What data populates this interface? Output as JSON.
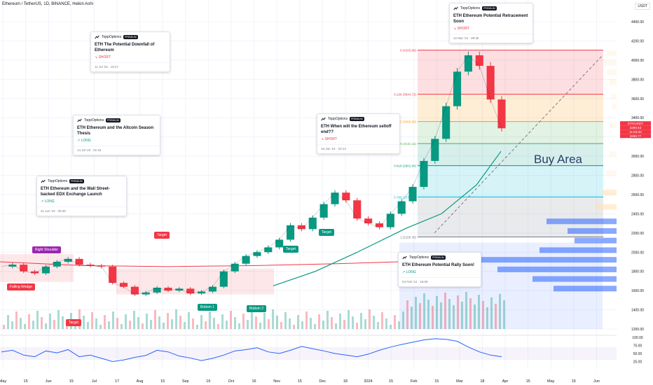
{
  "header": {
    "symbol_title": "Ethereum / TetherUS, 1D, BINANCE, Heikin Ashi",
    "currency": "USDT"
  },
  "price_axis": {
    "labels": [
      "4400.00",
      "4200.00",
      "4000.00",
      "3800.00",
      "3600.00",
      "3400.00",
      "3200.00",
      "3000.00",
      "2800.00",
      "2600.00",
      "2400.00",
      "2200.00",
      "2000.00",
      "1800.00",
      "1600.00",
      "1400.00",
      "1200.00"
    ],
    "badges": [
      {
        "text": "ETHUSDT",
        "color": "#f23645"
      },
      {
        "text": "3290.54",
        "color": "#f23645"
      },
      {
        "text": "11:53:32",
        "color": "#f23645"
      },
      {
        "text": "3290.77",
        "color": "#f23645"
      }
    ]
  },
  "rsi_axis": {
    "labels": [
      "100.00",
      "75.00",
      "50.00",
      "25.00"
    ]
  },
  "time_axis": {
    "labels": [
      "May",
      "15",
      "Jun",
      "15",
      "Jul",
      "17",
      "Aug",
      "15",
      "Sep",
      "16",
      "Oct",
      "16",
      "Nov",
      "15",
      "Dec",
      "18",
      "2024",
      "15",
      "Feb",
      "15",
      "Mar",
      "18",
      "Apr",
      "15",
      "May",
      "15",
      "Jun"
    ]
  },
  "fib_levels": [
    {
      "label": "0 (4103.86)",
      "color": "#f23645"
    },
    {
      "label": "0.236 (3644.72)",
      "color": "#f23645"
    },
    {
      "label": "0.382 (3360.68)",
      "color": "#ff9800"
    },
    {
      "label": "0.5 (3131.11)",
      "color": "#4caf50"
    },
    {
      "label": "0.618 (2901.54)",
      "color": "#089981"
    },
    {
      "label": "0.786 (2574.70)",
      "color": "#00bcd4"
    },
    {
      "label": "1 (2158.35)",
      "color": "#787b86"
    }
  ],
  "annotations": {
    "buy_area": "Buy Area",
    "tags": [
      {
        "text": "Right Shoulder",
        "color": "#9c27b0"
      },
      {
        "text": "Falling Wedge",
        "color": "#f23645"
      },
      {
        "text": "Target",
        "color": "#f23645"
      },
      {
        "text": "Target",
        "color": "#f23645"
      },
      {
        "text": "Bottom 1",
        "color": "#089981"
      },
      {
        "text": "Bottom 2",
        "color": "#089981"
      },
      {
        "text": "Target",
        "color": "#089981"
      },
      {
        "text": "Target",
        "color": "#089981"
      }
    ]
  },
  "ideas": [
    {
      "brand": "ToppOptions",
      "badge": "PREMIUM",
      "title": "ETH The Potential Downfall of Ethereum",
      "direction": "SHORT",
      "date": "11 Jul '23 · 19:27"
    },
    {
      "brand": "ToppOptions",
      "badge": "PREMIUM",
      "title": "ETH Ethereum and the Altcoin Season Thesis",
      "direction": "LONG",
      "date": "14 Jul '23 · 01:15"
    },
    {
      "brand": "ToppOptions",
      "badge": "PREMIUM",
      "title": "ETH Ethereum and the Wall Street-backed EDX Exchange Launch",
      "direction": "LONG",
      "date": "21 Jun '23 · 09:30"
    },
    {
      "brand": "ToppOptions",
      "badge": "PREMIUM",
      "title": "ETH When will the Ethereum selloff end??",
      "direction": "SHORT",
      "date": "18 Jan '24 · 03:14"
    },
    {
      "brand": "ToppOptions",
      "badge": "PREMIUM",
      "title": "ETH Ethereum Potential Retracement Soon",
      "direction": "SHORT",
      "date": "12 Mar '24 · 09:35"
    },
    {
      "brand": "ToppOptions",
      "badge": "PREMIUM",
      "title": "ETH Ethereum Potential Rally Soon!",
      "direction": "LONG",
      "date": "04 Feb '24 · 16:09"
    }
  ],
  "chart_data": {
    "type": "line",
    "title": "Ethereum / TetherUS, 1D, BINANCE, Heikin Ashi",
    "x_labels": [
      "May",
      "Jun",
      "Jul",
      "Aug",
      "Sep",
      "Oct",
      "Nov",
      "Dec",
      "2024",
      "Feb",
      "Mar",
      "Apr"
    ],
    "series": [
      {
        "name": "ETHUSDT",
        "values": [
          1850,
          1870,
          1800,
          1780,
          1850,
          1900,
          1930,
          1870,
          1860,
          1850,
          1680,
          1640,
          1560,
          1580,
          1630,
          1600,
          1620,
          1570,
          1590,
          1640,
          1800,
          1880,
          1960,
          2000,
          2050,
          2130,
          2280,
          2240,
          2360,
          2500,
          2620,
          2540,
          2350,
          2300,
          2260,
          2400,
          2530,
          2680,
          2950,
          3180,
          3520,
          3880,
          4050,
          3940,
          3590,
          3290
        ]
      }
    ],
    "fib_retracement": {
      "high": 4103.86,
      "low": 2158.35
    },
    "last_price": 3290.54,
    "ylim": [
      1200,
      4400
    ],
    "rsi_ylim": [
      0,
      100
    ],
    "grid": true
  }
}
